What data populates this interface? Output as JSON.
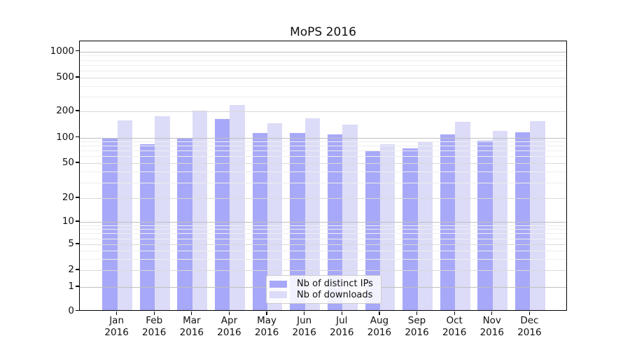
{
  "chart_data": {
    "type": "bar",
    "title": "MoPS 2016",
    "categories": [
      "Jan",
      "Feb",
      "Mar",
      "Apr",
      "May",
      "Jun",
      "Jul",
      "Aug",
      "Sep",
      "Oct",
      "Nov",
      "Dec"
    ],
    "x_year": "2016",
    "series": [
      {
        "name": "Nb of distinct IPs",
        "color": "#a8a8f8",
        "values": [
          97,
          81,
          94,
          160,
          109,
          110,
          105,
          69,
          72,
          105,
          89,
          112
        ]
      },
      {
        "name": "Nb of downloads",
        "color": "#dcdcf8",
        "values": [
          152,
          170,
          198,
          230,
          142,
          161,
          138,
          81,
          86,
          147,
          116,
          150
        ]
      }
    ],
    "yticks": [
      0,
      1,
      2,
      5,
      10,
      20,
      50,
      100,
      200,
      500,
      1000
    ],
    "ylim": [
      0,
      1000
    ],
    "yscale": "symlog",
    "grid": "both",
    "legend_position": "lower center inside"
  },
  "colors": {
    "bar_distinct_ips": "#a8a8f8",
    "bar_downloads": "#dcdcf8",
    "grid_decade": "#bfbfbf",
    "grid_labeled": "#d9d9d9",
    "grid_minor": "#eeeeee",
    "axis": "#000000",
    "background": "#ffffff"
  }
}
